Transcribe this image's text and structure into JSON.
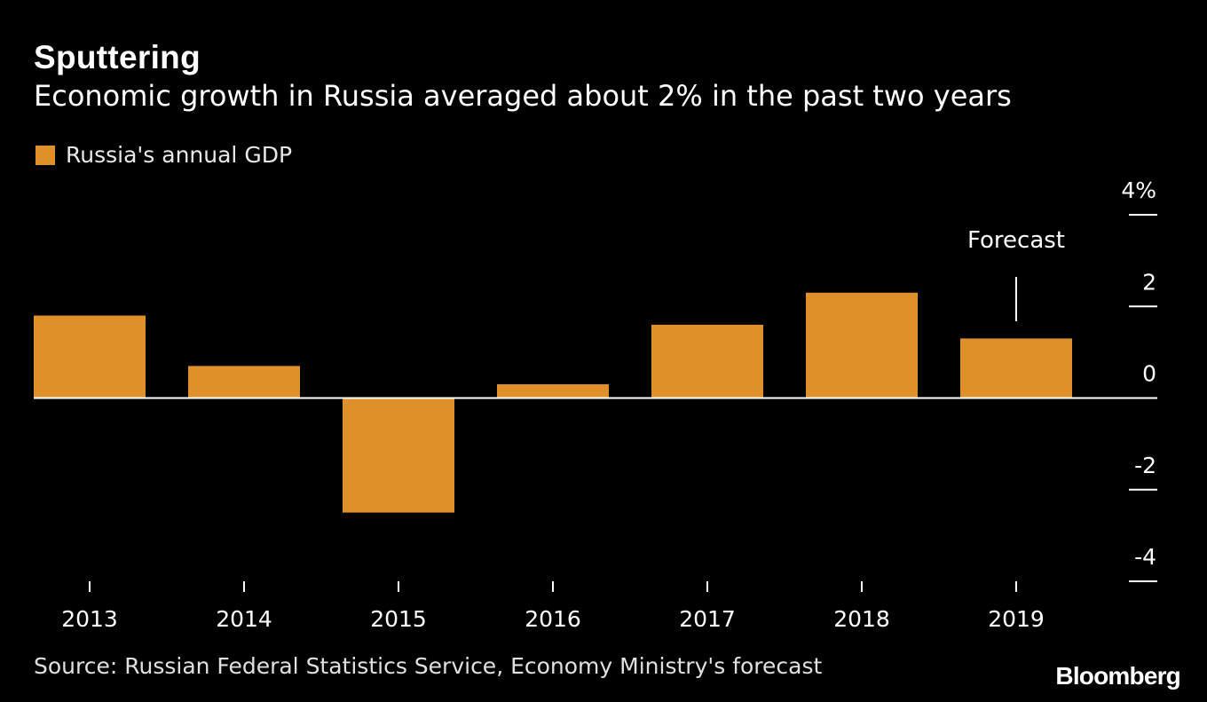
{
  "header": {
    "title": "Sputtering",
    "subtitle": "Economic growth in Russia averaged about 2% in the past two years"
  },
  "legend": {
    "label": "Russia's annual GDP"
  },
  "footer": {
    "source": "Source: Russian Federal Statistics Service, Economy Ministry's forecast",
    "logo": "Bloomberg"
  },
  "colors": {
    "bar": "#e0902a",
    "background": "#000000",
    "text": "#ffffff"
  },
  "chart_data": {
    "type": "bar",
    "categories": [
      "2013",
      "2014",
      "2015",
      "2016",
      "2017",
      "2018",
      "2019"
    ],
    "series": [
      {
        "name": "Russia's annual GDP",
        "values": [
          1.8,
          0.7,
          -2.5,
          0.3,
          1.6,
          2.3,
          1.3
        ]
      }
    ],
    "y_ticks": [
      4,
      2,
      0,
      -2,
      -4
    ],
    "y_tick_labels": [
      "4%",
      "2",
      "0",
      "-2",
      "-4"
    ],
    "ylim": [
      -4,
      4
    ],
    "annotation": {
      "text": "Forecast",
      "category": "2019"
    },
    "grid": false,
    "y_axis_side": "right"
  }
}
